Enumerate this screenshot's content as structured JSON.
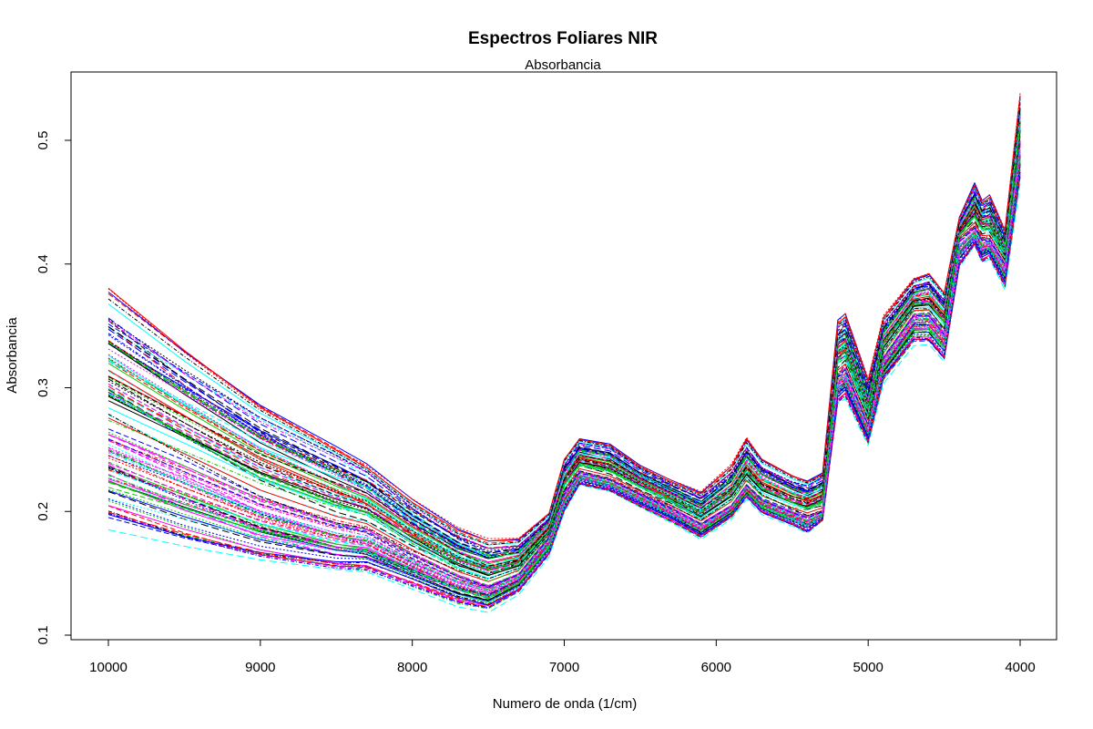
{
  "chart_data": {
    "type": "line",
    "title": "Espectros Foliares NIR",
    "subtitle": "Absorbancia",
    "xlabel": "Numero de onda (1/cm)",
    "ylabel": "Absorbancia",
    "xlim": [
      10000,
      4000
    ],
    "ylim": [
      0.1,
      0.55
    ],
    "x_reversed": true,
    "grid": false,
    "legend": "none",
    "x_ticks": [
      "10000",
      "9000",
      "8000",
      "7000",
      "6000",
      "5000",
      "4000"
    ],
    "y_ticks": [
      "0.1",
      "0.2",
      "0.3",
      "0.4",
      "0.5"
    ],
    "wavenumbers": [
      10000,
      9500,
      9000,
      8500,
      8300,
      8000,
      7700,
      7500,
      7300,
      7100,
      7000,
      6900,
      6700,
      6500,
      6300,
      6100,
      5900,
      5800,
      5700,
      5500,
      5400,
      5300,
      5200,
      5150,
      5000,
      4900,
      4700,
      4600,
      4500,
      4400,
      4300,
      4250,
      4200,
      4100,
      4000
    ],
    "series_summary": {
      "count": 120,
      "colors": [
        "#000000",
        "#ff0000",
        "#00cd00",
        "#0000ff",
        "#00ffff",
        "#ff00ff"
      ],
      "min_values": [
        0.17,
        0.155,
        0.145,
        0.14,
        0.14,
        0.13,
        0.118,
        0.115,
        0.13,
        0.16,
        0.195,
        0.218,
        0.213,
        0.2,
        0.188,
        0.175,
        0.192,
        0.208,
        0.195,
        0.185,
        0.178,
        0.19,
        0.28,
        0.285,
        0.25,
        0.3,
        0.33,
        0.33,
        0.315,
        0.39,
        0.41,
        0.395,
        0.4,
        0.375,
        0.46
      ],
      "max_values": [
        0.39,
        0.34,
        0.295,
        0.26,
        0.245,
        0.215,
        0.19,
        0.18,
        0.18,
        0.2,
        0.245,
        0.262,
        0.258,
        0.24,
        0.228,
        0.218,
        0.24,
        0.262,
        0.245,
        0.232,
        0.228,
        0.235,
        0.36,
        0.365,
        0.31,
        0.36,
        0.39,
        0.395,
        0.38,
        0.44,
        0.47,
        0.455,
        0.46,
        0.43,
        0.54
      ],
      "median_values": [
        0.265,
        0.238,
        0.21,
        0.19,
        0.185,
        0.165,
        0.148,
        0.14,
        0.15,
        0.18,
        0.215,
        0.232,
        0.226,
        0.214,
        0.203,
        0.19,
        0.205,
        0.222,
        0.21,
        0.2,
        0.196,
        0.2,
        0.31,
        0.315,
        0.27,
        0.325,
        0.36,
        0.36,
        0.345,
        0.42,
        0.43,
        0.42,
        0.42,
        0.4,
        0.5
      ]
    }
  }
}
